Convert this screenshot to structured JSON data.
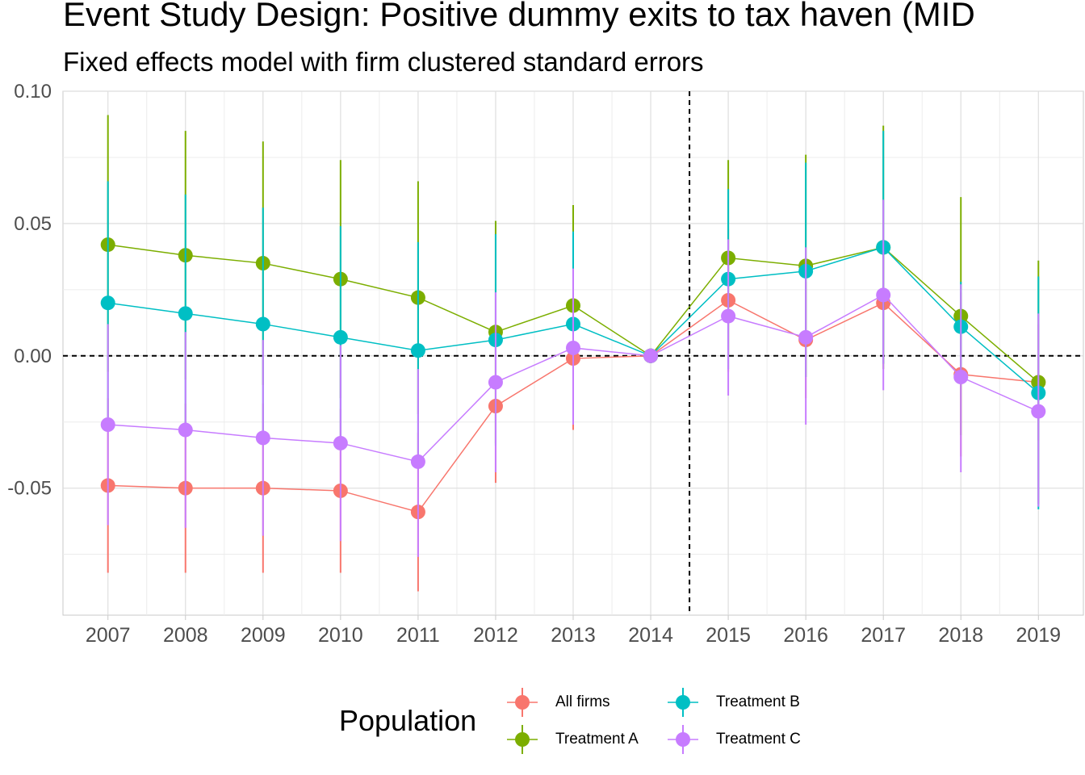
{
  "chart_data": {
    "type": "line",
    "title": "Event Study Design: Positive dummy exits to tax haven (MID",
    "subtitle": "Fixed effects model with firm clustered standard errors",
    "xlabel": "",
    "ylabel": "",
    "x": [
      2007,
      2008,
      2009,
      2010,
      2011,
      2012,
      2013,
      2014,
      2015,
      2016,
      2017,
      2018,
      2019
    ],
    "y_ticks": [
      "0.10",
      "0.05",
      "0.00",
      "-0.05"
    ],
    "y_tick_values": [
      0.1,
      0.05,
      0.0,
      -0.05
    ],
    "ylim": [
      -0.098,
      0.1
    ],
    "xlim": [
      2006.42,
      2019.58
    ],
    "grid": true,
    "reference_lines": {
      "y": 0.0,
      "x": 2014.5,
      "style": "dashed"
    },
    "series": [
      {
        "name": "All firms",
        "color": "#F8766D",
        "values": [
          -0.049,
          -0.05,
          -0.05,
          -0.051,
          -0.059,
          -0.019,
          -0.001,
          0.0,
          0.021,
          0.006,
          0.02,
          -0.007,
          -0.01
        ],
        "lower": [
          -0.082,
          -0.082,
          -0.082,
          -0.082,
          -0.089,
          -0.048,
          -0.028,
          0.0,
          -0.006,
          -0.016,
          -0.003,
          -0.038,
          -0.032
        ],
        "upper": [
          -0.016,
          -0.018,
          -0.018,
          -0.02,
          -0.029,
          0.01,
          0.026,
          0.0,
          0.048,
          0.028,
          0.043,
          0.024,
          0.012
        ]
      },
      {
        "name": "Treatment A",
        "color": "#7CAE00",
        "values": [
          0.042,
          0.038,
          0.035,
          0.029,
          0.022,
          0.009,
          0.019,
          0.0,
          0.037,
          0.034,
          0.041,
          0.015,
          -0.01
        ],
        "lower": [
          -0.006,
          -0.009,
          -0.011,
          -0.016,
          -0.022,
          -0.033,
          -0.019,
          0.0,
          0.0,
          -0.008,
          -0.005,
          -0.03,
          -0.056
        ],
        "upper": [
          0.091,
          0.085,
          0.081,
          0.074,
          0.066,
          0.051,
          0.057,
          0.0,
          0.074,
          0.076,
          0.087,
          0.06,
          0.036
        ]
      },
      {
        "name": "Treatment B",
        "color": "#00BFC4",
        "values": [
          0.02,
          0.016,
          0.012,
          0.007,
          0.002,
          0.006,
          0.012,
          0.0,
          0.029,
          0.032,
          0.041,
          0.011,
          -0.014
        ],
        "lower": [
          -0.025,
          -0.029,
          -0.031,
          -0.035,
          -0.038,
          -0.034,
          -0.022,
          0.0,
          -0.005,
          -0.008,
          -0.003,
          -0.006,
          -0.058
        ],
        "upper": [
          0.066,
          0.061,
          0.056,
          0.049,
          0.043,
          0.046,
          0.047,
          0.0,
          0.063,
          0.073,
          0.085,
          0.028,
          0.03
        ]
      },
      {
        "name": "Treatment C",
        "color": "#C77CFF",
        "values": [
          -0.026,
          -0.028,
          -0.031,
          -0.033,
          -0.04,
          -0.01,
          0.003,
          0.0,
          0.015,
          0.007,
          0.023,
          -0.008,
          -0.021
        ],
        "lower": [
          -0.064,
          -0.065,
          -0.068,
          -0.07,
          -0.076,
          -0.044,
          -0.026,
          0.0,
          -0.015,
          -0.026,
          -0.013,
          -0.044,
          -0.057
        ],
        "upper": [
          0.012,
          0.009,
          0.006,
          0.004,
          -0.005,
          0.024,
          0.033,
          0.0,
          0.044,
          0.041,
          0.059,
          0.027,
          0.016
        ]
      }
    ]
  },
  "legend": {
    "title": "Population",
    "items": [
      {
        "label": "All firms",
        "series": 0
      },
      {
        "label": "Treatment A",
        "series": 1
      },
      {
        "label": "Treatment B",
        "series": 2
      },
      {
        "label": "Treatment C",
        "series": 3
      }
    ]
  }
}
